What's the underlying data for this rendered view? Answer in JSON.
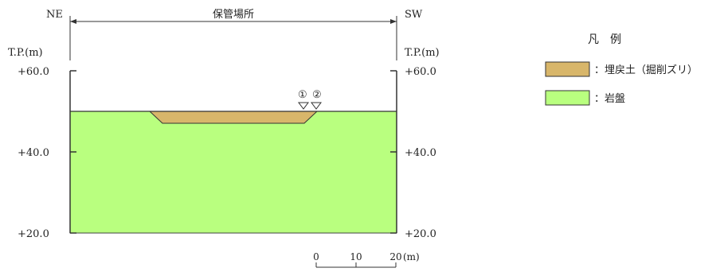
{
  "directions": {
    "left": "NE",
    "right": "SW"
  },
  "section_label": "保管場所",
  "elevation_unit": "T.P.(m)",
  "elevations": [
    "+60.0",
    "+40.0",
    "+20.0"
  ],
  "markers": [
    "①",
    "②"
  ],
  "scale": {
    "ticks": [
      "0",
      "10",
      "20"
    ],
    "unit": "(m)"
  },
  "legend": {
    "title": "凡　例",
    "items": [
      {
        "label": "：埋戻土（掘削ズリ）",
        "color": "#D8B66A"
      },
      {
        "label": "：岩盤",
        "color": "#B9FF7F"
      }
    ]
  }
}
